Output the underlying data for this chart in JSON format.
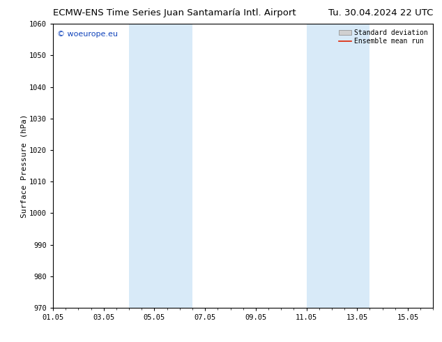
{
  "title_left": "ECMW-ENS Time Series Juan Santamaría Intl. Airport",
  "title_right": "Tu. 30.04.2024 22 UTC",
  "ylabel": "Surface Pressure (hPa)",
  "ylim": [
    970,
    1060
  ],
  "yticks": [
    970,
    980,
    990,
    1000,
    1010,
    1020,
    1030,
    1040,
    1050,
    1060
  ],
  "xtick_labels": [
    "01.05",
    "03.05",
    "05.05",
    "07.05",
    "09.05",
    "11.05",
    "13.05",
    "15.05"
  ],
  "xtick_days": [
    0,
    2,
    4,
    6,
    8,
    10,
    12,
    14
  ],
  "xlim": [
    0,
    15
  ],
  "shaded_bands": [
    {
      "start": 3,
      "end": 5.5
    },
    {
      "start": 10,
      "end": 12.5
    }
  ],
  "shade_color": "#d8eaf8",
  "watermark_text": "© woeurope.eu",
  "watermark_color": "#1144bb",
  "legend_sd_label": "Standard deviation",
  "legend_mean_label": "Ensemble mean run",
  "legend_sd_facecolor": "#d0d0d0",
  "legend_sd_edgecolor": "#888888",
  "legend_mean_color": "#dd2200",
  "bg_color": "#ffffff",
  "title_fontsize": 9.5,
  "ylabel_fontsize": 8,
  "tick_fontsize": 7.5,
  "watermark_fontsize": 8,
  "legend_fontsize": 7
}
